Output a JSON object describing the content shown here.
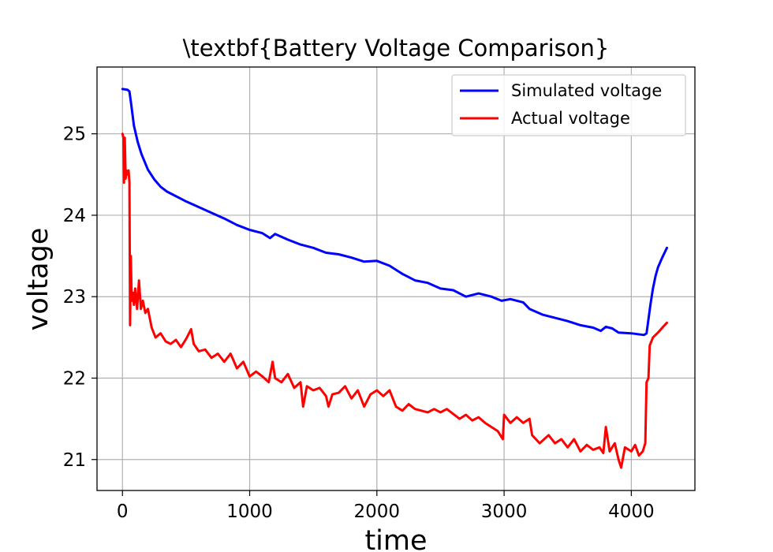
{
  "chart_data": {
    "type": "line",
    "title": "\\textbf{Battery Voltage Comparison}",
    "xlabel": "time",
    "ylabel": "voltage",
    "xlim": [
      -200,
      4500
    ],
    "ylim": [
      20.62,
      25.82
    ],
    "xticks": [
      0,
      1000,
      2000,
      3000,
      4000
    ],
    "yticks": [
      21,
      22,
      23,
      24,
      25
    ],
    "grid": true,
    "legend_position": "top-right",
    "series": [
      {
        "name": "Simulated voltage",
        "color": "#0000ff",
        "points": [
          [
            0,
            25.55
          ],
          [
            40,
            25.54
          ],
          [
            55,
            25.52
          ],
          [
            70,
            25.35
          ],
          [
            90,
            25.1
          ],
          [
            120,
            24.9
          ],
          [
            150,
            24.75
          ],
          [
            200,
            24.56
          ],
          [
            250,
            24.44
          ],
          [
            300,
            24.35
          ],
          [
            350,
            24.29
          ],
          [
            400,
            24.25
          ],
          [
            500,
            24.17
          ],
          [
            600,
            24.1
          ],
          [
            700,
            24.03
          ],
          [
            800,
            23.96
          ],
          [
            900,
            23.88
          ],
          [
            1000,
            23.82
          ],
          [
            1100,
            23.78
          ],
          [
            1160,
            23.72
          ],
          [
            1200,
            23.77
          ],
          [
            1300,
            23.7
          ],
          [
            1400,
            23.64
          ],
          [
            1500,
            23.6
          ],
          [
            1600,
            23.54
          ],
          [
            1700,
            23.52
          ],
          [
            1800,
            23.48
          ],
          [
            1900,
            23.43
          ],
          [
            2000,
            23.44
          ],
          [
            2100,
            23.38
          ],
          [
            2200,
            23.28
          ],
          [
            2300,
            23.2
          ],
          [
            2400,
            23.17
          ],
          [
            2500,
            23.1
          ],
          [
            2600,
            23.08
          ],
          [
            2700,
            23.0
          ],
          [
            2800,
            23.04
          ],
          [
            2900,
            23.0
          ],
          [
            2980,
            22.95
          ],
          [
            3050,
            22.97
          ],
          [
            3150,
            22.93
          ],
          [
            3200,
            22.85
          ],
          [
            3300,
            22.78
          ],
          [
            3400,
            22.74
          ],
          [
            3500,
            22.7
          ],
          [
            3600,
            22.65
          ],
          [
            3700,
            22.62
          ],
          [
            3760,
            22.58
          ],
          [
            3800,
            22.63
          ],
          [
            3850,
            22.61
          ],
          [
            3900,
            22.56
          ],
          [
            4000,
            22.55
          ],
          [
            4100,
            22.53
          ],
          [
            4120,
            22.55
          ],
          [
            4150,
            22.9
          ],
          [
            4170,
            23.1
          ],
          [
            4190,
            23.25
          ],
          [
            4210,
            23.36
          ],
          [
            4240,
            23.47
          ],
          [
            4280,
            23.6
          ]
        ]
      },
      {
        "name": "Actual voltage",
        "color": "#ff0000",
        "points": [
          [
            0,
            25.0
          ],
          [
            8,
            24.95
          ],
          [
            12,
            24.4
          ],
          [
            18,
            24.95
          ],
          [
            25,
            24.45
          ],
          [
            32,
            24.55
          ],
          [
            40,
            24.5
          ],
          [
            48,
            24.55
          ],
          [
            55,
            24.4
          ],
          [
            60,
            22.65
          ],
          [
            66,
            23.5
          ],
          [
            72,
            22.95
          ],
          [
            80,
            23.05
          ],
          [
            90,
            22.9
          ],
          [
            100,
            23.1
          ],
          [
            115,
            22.85
          ],
          [
            130,
            23.2
          ],
          [
            145,
            22.85
          ],
          [
            160,
            22.95
          ],
          [
            180,
            22.8
          ],
          [
            200,
            22.85
          ],
          [
            230,
            22.62
          ],
          [
            260,
            22.5
          ],
          [
            300,
            22.55
          ],
          [
            340,
            22.45
          ],
          [
            380,
            22.42
          ],
          [
            420,
            22.47
          ],
          [
            460,
            22.38
          ],
          [
            500,
            22.48
          ],
          [
            540,
            22.6
          ],
          [
            560,
            22.42
          ],
          [
            600,
            22.33
          ],
          [
            650,
            22.35
          ],
          [
            700,
            22.25
          ],
          [
            750,
            22.3
          ],
          [
            800,
            22.2
          ],
          [
            850,
            22.3
          ],
          [
            900,
            22.12
          ],
          [
            950,
            22.2
          ],
          [
            1000,
            22.02
          ],
          [
            1050,
            22.08
          ],
          [
            1100,
            22.02
          ],
          [
            1150,
            21.95
          ],
          [
            1180,
            22.2
          ],
          [
            1200,
            22.0
          ],
          [
            1250,
            21.95
          ],
          [
            1300,
            22.05
          ],
          [
            1350,
            21.88
          ],
          [
            1400,
            21.95
          ],
          [
            1420,
            21.65
          ],
          [
            1450,
            21.9
          ],
          [
            1500,
            21.85
          ],
          [
            1550,
            21.88
          ],
          [
            1600,
            21.78
          ],
          [
            1620,
            21.65
          ],
          [
            1650,
            21.8
          ],
          [
            1700,
            21.82
          ],
          [
            1750,
            21.9
          ],
          [
            1800,
            21.75
          ],
          [
            1850,
            21.85
          ],
          [
            1900,
            21.65
          ],
          [
            1950,
            21.8
          ],
          [
            2000,
            21.85
          ],
          [
            2050,
            21.78
          ],
          [
            2100,
            21.85
          ],
          [
            2150,
            21.65
          ],
          [
            2200,
            21.6
          ],
          [
            2250,
            21.68
          ],
          [
            2300,
            21.62
          ],
          [
            2350,
            21.6
          ],
          [
            2400,
            21.58
          ],
          [
            2450,
            21.62
          ],
          [
            2500,
            21.58
          ],
          [
            2550,
            21.62
          ],
          [
            2600,
            21.56
          ],
          [
            2650,
            21.5
          ],
          [
            2700,
            21.55
          ],
          [
            2750,
            21.48
          ],
          [
            2800,
            21.52
          ],
          [
            2850,
            21.45
          ],
          [
            2900,
            21.4
          ],
          [
            2950,
            21.35
          ],
          [
            2990,
            21.25
          ],
          [
            3000,
            21.55
          ],
          [
            3050,
            21.45
          ],
          [
            3100,
            21.52
          ],
          [
            3150,
            21.45
          ],
          [
            3200,
            21.5
          ],
          [
            3220,
            21.3
          ],
          [
            3280,
            21.2
          ],
          [
            3350,
            21.3
          ],
          [
            3400,
            21.2
          ],
          [
            3450,
            21.25
          ],
          [
            3500,
            21.15
          ],
          [
            3550,
            21.25
          ],
          [
            3600,
            21.1
          ],
          [
            3650,
            21.18
          ],
          [
            3700,
            21.12
          ],
          [
            3750,
            21.15
          ],
          [
            3780,
            21.08
          ],
          [
            3800,
            21.4
          ],
          [
            3830,
            21.1
          ],
          [
            3870,
            21.2
          ],
          [
            3900,
            21.0
          ],
          [
            3920,
            20.9
          ],
          [
            3950,
            21.15
          ],
          [
            4000,
            21.1
          ],
          [
            4030,
            21.18
          ],
          [
            4060,
            21.05
          ],
          [
            4090,
            21.1
          ],
          [
            4110,
            21.2
          ],
          [
            4120,
            21.95
          ],
          [
            4135,
            22.0
          ],
          [
            4145,
            22.4
          ],
          [
            4170,
            22.5
          ],
          [
            4210,
            22.56
          ],
          [
            4250,
            22.63
          ],
          [
            4280,
            22.68
          ]
        ]
      }
    ]
  }
}
